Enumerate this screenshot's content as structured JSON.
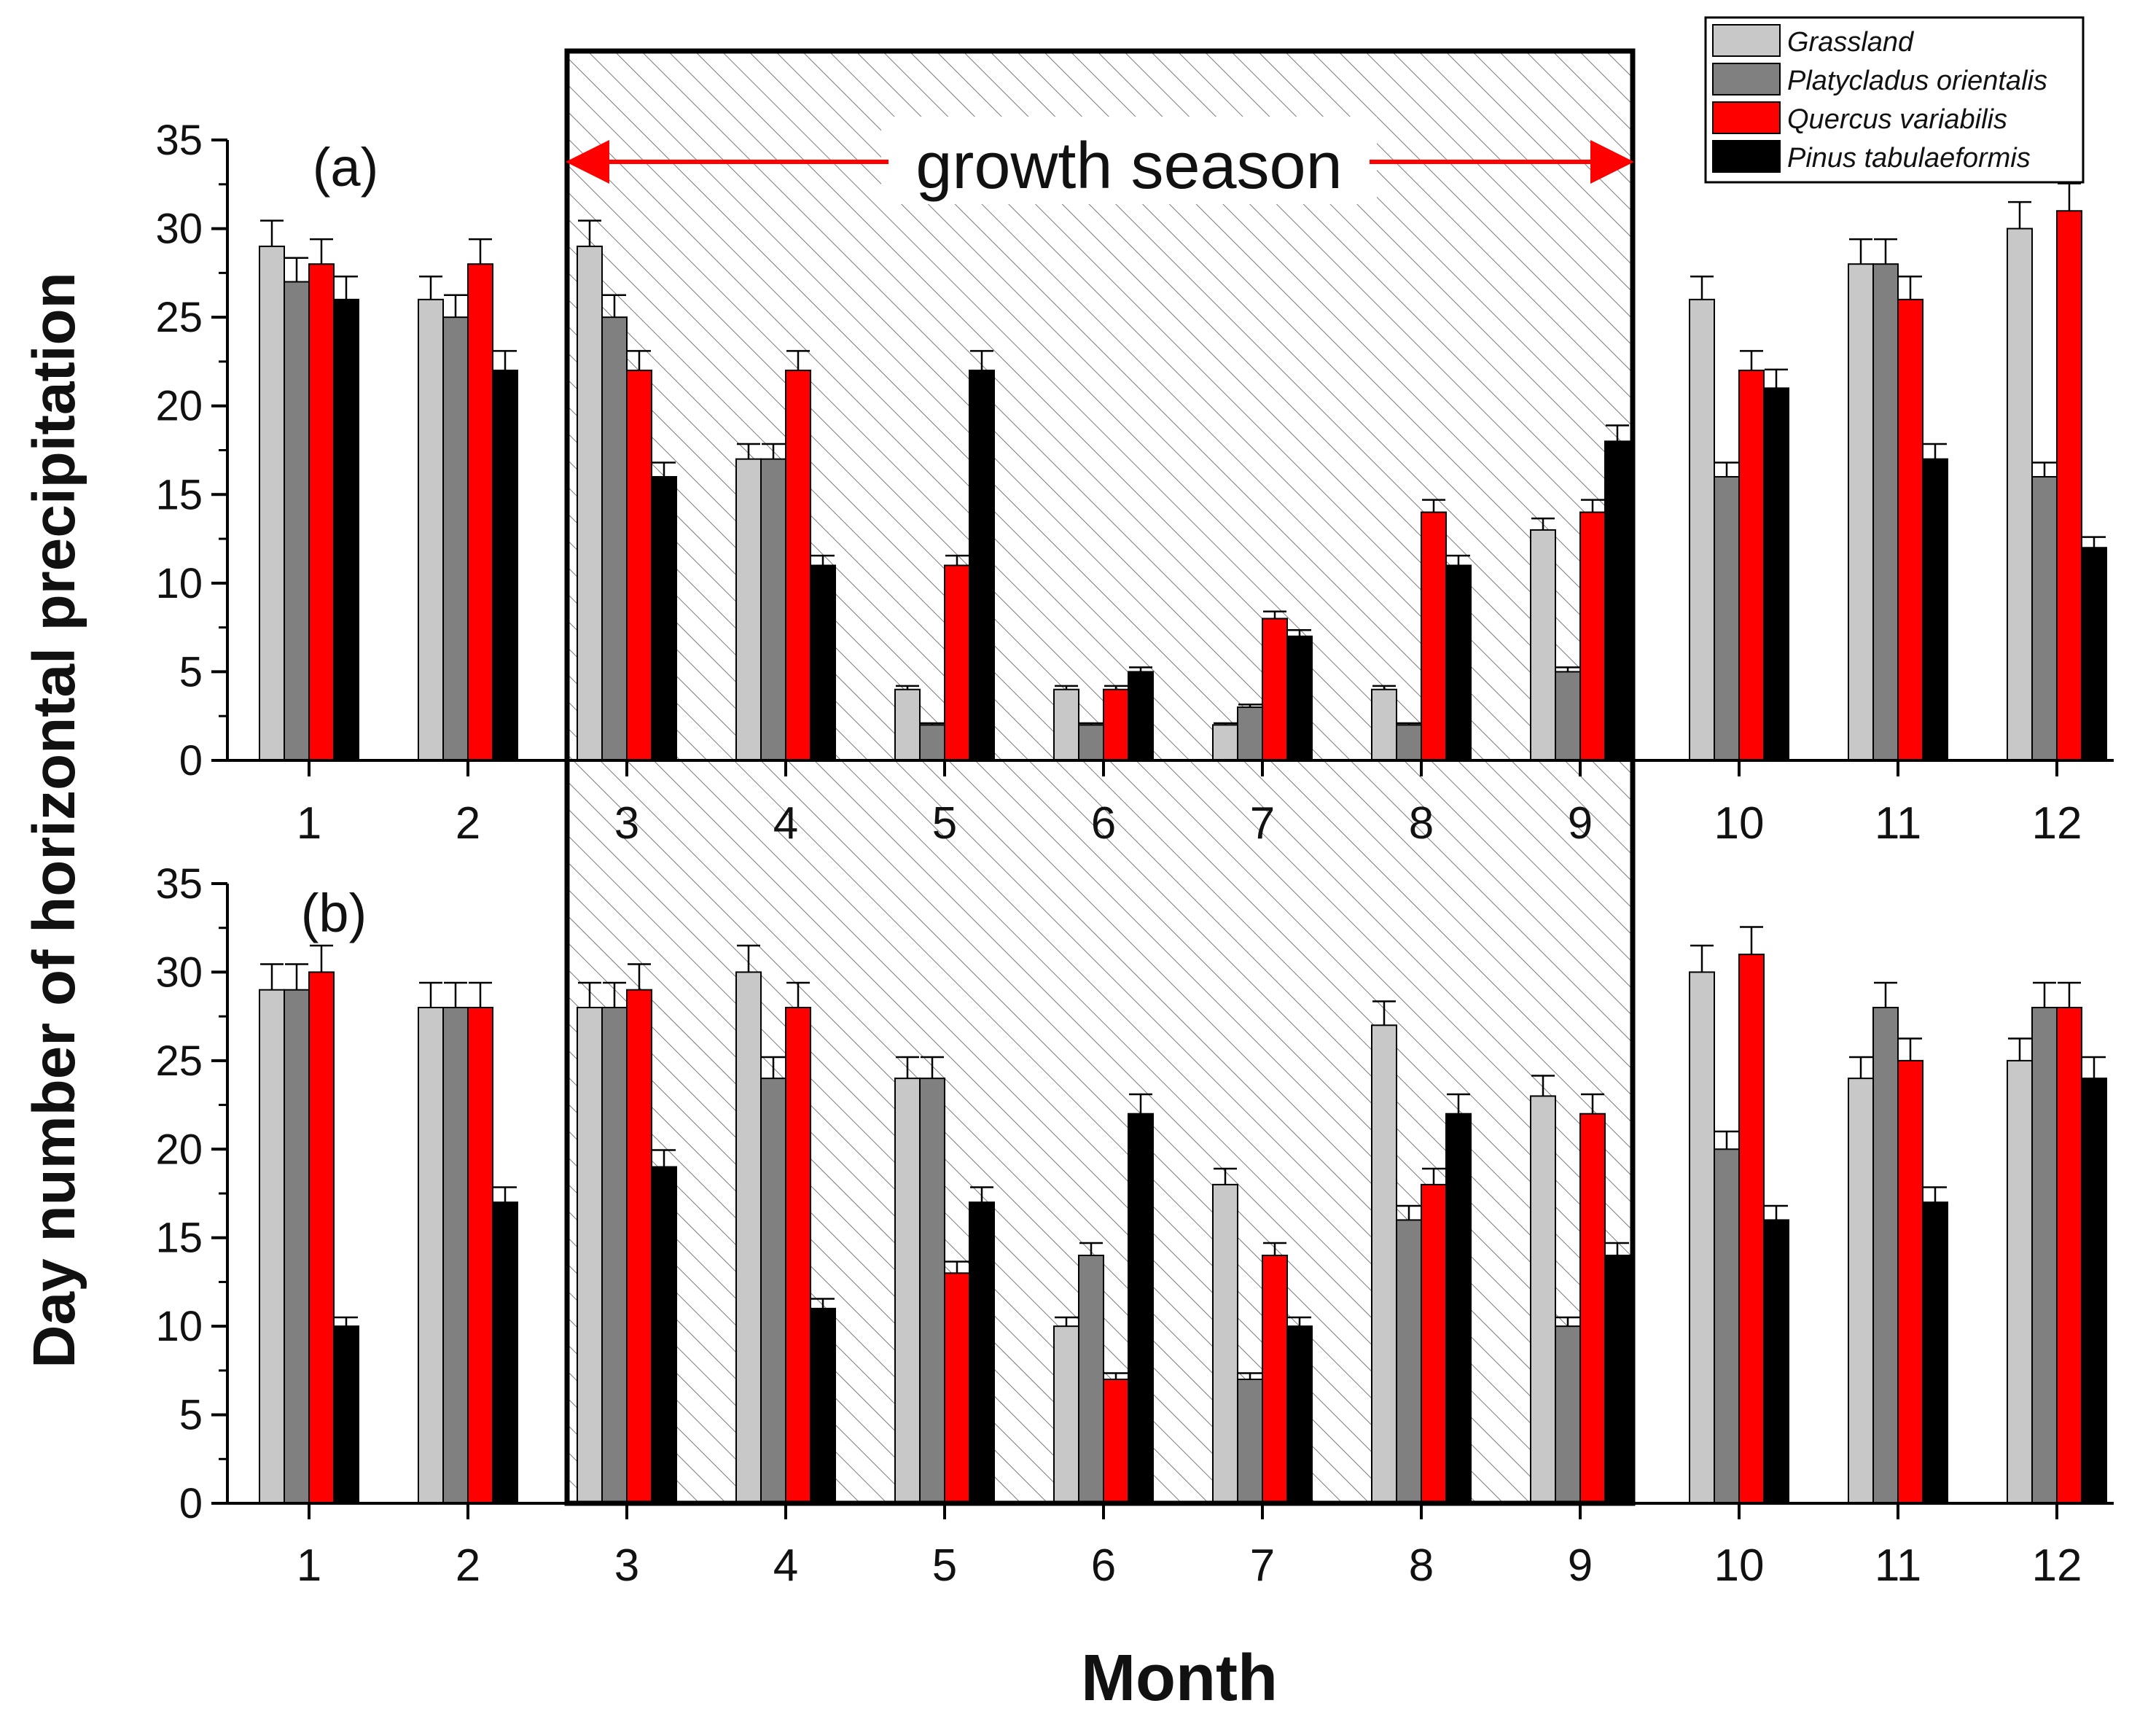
{
  "figure": {
    "ylabel": "Day number of horizontal precipitation",
    "xlabel": "Month",
    "annotation": "growth season"
  },
  "legend": {
    "placement": "top-right",
    "entries": [
      {
        "name": "Grassland",
        "color": "#c8c8c8"
      },
      {
        "name": "Platycladus orientalis",
        "color": "#808080"
      },
      {
        "name": "Quercus variabilis",
        "color": "#ff0000"
      },
      {
        "name": "Pinus tabulaeformis",
        "color": "#000000"
      }
    ]
  },
  "chart_data": [
    {
      "type": "bar",
      "panel_label": "(a)",
      "categories": [
        "1",
        "2",
        "3",
        "4",
        "5",
        "6",
        "7",
        "8",
        "9",
        "10",
        "11",
        "12"
      ],
      "ylim": [
        0,
        35
      ],
      "yticks": [
        0,
        5,
        10,
        15,
        20,
        25,
        30,
        35
      ],
      "shaded_range": [
        "3",
        "9"
      ],
      "series": [
        {
          "name": "Grassland",
          "values": [
            29,
            26,
            29,
            17,
            4,
            4,
            2,
            4,
            13,
            26,
            28,
            30
          ]
        },
        {
          "name": "Platycladus orientalis",
          "values": [
            27,
            25,
            25,
            17,
            2,
            2,
            3,
            2,
            5,
            16,
            28,
            16
          ]
        },
        {
          "name": "Quercus variabilis",
          "values": [
            28,
            28,
            22,
            22,
            11,
            4,
            8,
            14,
            14,
            22,
            26,
            31
          ]
        },
        {
          "name": "Pinus tabulaeformis",
          "values": [
            26,
            22,
            16,
            11,
            22,
            5,
            7,
            11,
            18,
            21,
            17,
            12
          ]
        }
      ]
    },
    {
      "type": "bar",
      "panel_label": "(b)",
      "categories": [
        "1",
        "2",
        "3",
        "4",
        "5",
        "6",
        "7",
        "8",
        "9",
        "10",
        "11",
        "12"
      ],
      "ylim": [
        0,
        35
      ],
      "yticks": [
        0,
        5,
        10,
        15,
        20,
        25,
        30,
        35
      ],
      "shaded_range": [
        "3",
        "9"
      ],
      "series": [
        {
          "name": "Grassland",
          "values": [
            29,
            28,
            28,
            30,
            24,
            10,
            18,
            27,
            23,
            30,
            24,
            25
          ]
        },
        {
          "name": "Platycladus orientalis",
          "values": [
            29,
            28,
            28,
            24,
            24,
            14,
            7,
            16,
            10,
            20,
            28,
            28
          ]
        },
        {
          "name": "Quercus variabilis",
          "values": [
            30,
            28,
            29,
            28,
            13,
            7,
            14,
            18,
            22,
            31,
            25,
            28
          ]
        },
        {
          "name": "Pinus tabulaeformis",
          "values": [
            10,
            17,
            19,
            11,
            17,
            22,
            10,
            22,
            14,
            16,
            17,
            24
          ]
        }
      ]
    }
  ]
}
